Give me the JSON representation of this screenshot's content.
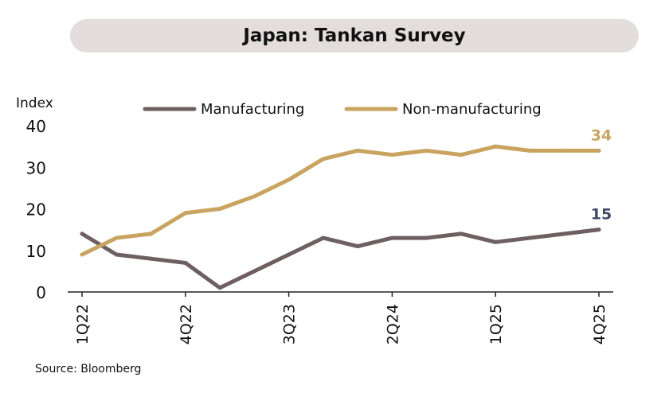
{
  "title": "Japan: Tankan Survey",
  "source": "Source: Bloomberg",
  "colors": {
    "manufacturing": "#6e6062",
    "non_manufacturing": "#c9a461",
    "manufacturing_label": "#3f4a66",
    "title_bg": "#e3dedd"
  },
  "chart_data": {
    "type": "line",
    "title": "Japan: Tankan Survey",
    "ylabel": "Index",
    "xlabel": "",
    "ylim": [
      0,
      40
    ],
    "yticks": [
      0,
      10,
      20,
      30,
      40
    ],
    "grid": false,
    "legend": "top",
    "x": [
      "1Q22",
      "2Q22",
      "3Q22",
      "4Q22",
      "1Q23",
      "2Q23",
      "3Q23",
      "4Q23",
      "1Q24",
      "2Q24",
      "3Q24",
      "4Q24",
      "1Q25",
      "2Q25",
      "3Q25",
      "4Q25"
    ],
    "xtick_labels": [
      "1Q22",
      "4Q22",
      "3Q23",
      "2Q24",
      "1Q25",
      "4Q25"
    ],
    "series": [
      {
        "name": "Manufacturing",
        "values": [
          14,
          9,
          8,
          7,
          1,
          5,
          9,
          13,
          11,
          13,
          13,
          14,
          12,
          13,
          14,
          15
        ],
        "end_label": "15"
      },
      {
        "name": "Non-manufacturing",
        "values": [
          9,
          13,
          14,
          19,
          20,
          23,
          27,
          32,
          34,
          33,
          34,
          33,
          35,
          34,
          34,
          34
        ],
        "end_label": "34"
      }
    ]
  }
}
